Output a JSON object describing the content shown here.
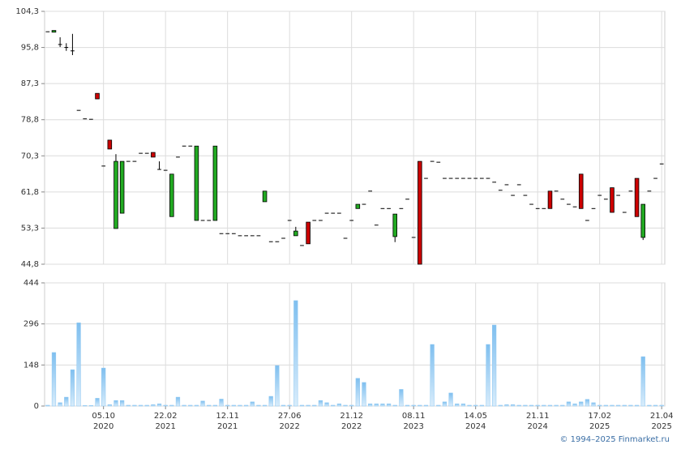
{
  "chart_data": {
    "type": "candlestick",
    "categories": [
      null,
      null,
      null,
      null,
      null,
      null,
      null,
      null,
      null,
      [
        "05.10",
        "2020"
      ],
      null,
      null,
      null,
      null,
      null,
      null,
      null,
      null,
      null,
      [
        "22.02",
        "2021"
      ],
      null,
      null,
      null,
      null,
      null,
      null,
      null,
      null,
      null,
      [
        "12.11",
        "2021"
      ],
      null,
      null,
      null,
      null,
      null,
      null,
      null,
      null,
      null,
      [
        "27.06",
        "2022"
      ],
      null,
      null,
      null,
      null,
      null,
      null,
      null,
      null,
      null,
      [
        "21.12",
        "2022"
      ],
      null,
      null,
      null,
      null,
      null,
      null,
      null,
      null,
      null,
      [
        "08.11",
        "2023"
      ],
      null,
      null,
      null,
      null,
      null,
      null,
      null,
      null,
      null,
      [
        "14.05",
        "2024"
      ],
      null,
      null,
      null,
      null,
      null,
      null,
      null,
      null,
      null,
      [
        "21.11",
        "2024"
      ],
      null,
      null,
      null,
      null,
      null,
      null,
      null,
      null,
      null,
      [
        "17.02",
        "2025"
      ],
      null,
      null,
      null,
      null,
      null,
      null,
      null,
      null,
      null,
      [
        "21.04",
        "2025"
      ]
    ],
    "open": [
      99.5,
      99.4,
      96.5,
      95.8,
      95.0,
      81.0,
      79.0,
      78.9,
      85.0,
      67.9,
      74.0,
      53.2,
      56.8,
      69.0,
      69.0,
      70.9,
      70.9,
      71.1,
      67.1,
      66.9,
      56.0,
      70.0,
      72.6,
      72.6,
      55.1,
      55.1,
      55.1,
      55.1,
      52.0,
      52.0,
      52.0,
      51.5,
      51.5,
      51.5,
      51.5,
      59.5,
      50.1,
      50.1,
      50.9,
      55.1,
      51.5,
      49.2,
      54.7,
      55.1,
      55.1,
      56.8,
      56.8,
      56.8,
      50.9,
      55.1,
      57.9,
      58.9,
      62.0,
      54.0,
      57.9,
      57.9,
      51.3,
      57.9,
      60.1,
      51.1,
      69.0,
      65.0,
      69.0,
      68.8,
      65.0,
      65.0,
      65.0,
      65.0,
      65.0,
      65.0,
      65.0,
      65.0,
      64.1,
      62.2,
      63.5,
      61.0,
      63.5,
      61.0,
      58.9,
      57.9,
      57.9,
      62.0,
      62.0,
      60.1,
      58.9,
      58.3,
      66.0,
      55.1,
      57.9,
      61.0,
      60.1,
      62.8,
      61.0,
      57.0,
      62.0,
      65.0,
      51.1,
      62.0,
      65.0,
      68.4
    ],
    "high": [
      99.5,
      99.8,
      98.2,
      96.8,
      99.0,
      81.0,
      79.0,
      78.9,
      85.0,
      67.9,
      74.0,
      70.7,
      69.0,
      69.0,
      69.0,
      70.9,
      70.9,
      71.1,
      69.0,
      66.9,
      66.0,
      70.0,
      72.6,
      72.6,
      72.6,
      55.1,
      55.1,
      72.6,
      52.0,
      52.0,
      52.0,
      51.5,
      51.5,
      51.5,
      51.5,
      62.0,
      50.1,
      50.1,
      50.9,
      55.1,
      53.6,
      49.2,
      54.7,
      55.1,
      55.1,
      56.8,
      56.8,
      56.8,
      50.9,
      55.1,
      58.9,
      58.9,
      62.0,
      54.0,
      57.9,
      57.9,
      56.6,
      57.9,
      60.1,
      51.1,
      69.0,
      65.0,
      69.0,
      68.8,
      65.0,
      65.0,
      65.0,
      65.0,
      65.0,
      65.0,
      65.0,
      65.0,
      64.1,
      62.2,
      63.5,
      61.0,
      63.5,
      61.0,
      58.9,
      57.9,
      57.9,
      62.0,
      62.0,
      60.1,
      58.9,
      58.3,
      66.0,
      55.1,
      57.9,
      61.0,
      60.1,
      62.8,
      61.0,
      57.0,
      62.0,
      65.0,
      58.9,
      62.0,
      65.0,
      68.4
    ],
    "low": [
      99.5,
      99.4,
      95.9,
      95.0,
      94.0,
      81.0,
      79.0,
      78.9,
      83.7,
      67.9,
      71.9,
      53.2,
      56.8,
      69.0,
      69.0,
      70.9,
      70.9,
      70.0,
      67.1,
      66.9,
      56.0,
      70.0,
      72.6,
      72.6,
      55.1,
      55.1,
      55.1,
      55.1,
      52.0,
      52.0,
      52.0,
      51.5,
      51.5,
      51.5,
      51.5,
      59.5,
      50.1,
      50.1,
      50.9,
      55.1,
      51.5,
      49.2,
      49.6,
      55.1,
      55.1,
      56.8,
      56.8,
      56.8,
      50.9,
      55.1,
      57.9,
      58.9,
      62.0,
      54.0,
      57.9,
      57.9,
      50.0,
      57.9,
      60.1,
      51.1,
      44.8,
      65.0,
      69.0,
      68.8,
      65.0,
      65.0,
      65.0,
      65.0,
      65.0,
      65.0,
      65.0,
      65.0,
      64.1,
      62.2,
      63.5,
      61.0,
      63.5,
      61.0,
      58.9,
      57.9,
      57.9,
      57.9,
      62.0,
      60.1,
      58.9,
      58.3,
      57.9,
      55.1,
      57.9,
      61.0,
      60.1,
      57.0,
      61.0,
      57.0,
      62.0,
      56.0,
      50.5,
      62.0,
      65.0,
      68.4
    ],
    "close": [
      99.5,
      99.8,
      96.5,
      95.8,
      95.0,
      81.0,
      79.0,
      78.9,
      83.7,
      67.9,
      71.9,
      69.0,
      69.0,
      69.0,
      69.0,
      70.9,
      70.9,
      70.0,
      67.1,
      66.9,
      66.0,
      70.0,
      72.6,
      72.6,
      72.6,
      55.1,
      55.1,
      72.6,
      52.0,
      52.0,
      52.0,
      51.5,
      51.5,
      51.5,
      51.5,
      62.0,
      50.1,
      50.1,
      50.9,
      55.1,
      52.6,
      49.2,
      49.6,
      55.1,
      55.1,
      56.8,
      56.8,
      56.8,
      50.9,
      55.1,
      58.9,
      58.9,
      62.0,
      54.0,
      57.9,
      57.9,
      56.6,
      57.9,
      60.1,
      51.1,
      44.8,
      65.0,
      69.0,
      68.8,
      65.0,
      65.0,
      65.0,
      65.0,
      65.0,
      65.0,
      65.0,
      65.0,
      64.1,
      62.2,
      63.5,
      61.0,
      63.5,
      61.0,
      58.9,
      57.9,
      57.9,
      57.9,
      62.0,
      60.1,
      58.9,
      58.3,
      57.9,
      55.1,
      57.9,
      61.0,
      60.1,
      57.0,
      61.0,
      57.0,
      62.0,
      56.0,
      58.9,
      62.0,
      65.0,
      68.4
    ],
    "volume": [
      3,
      193,
      12,
      32,
      131,
      300,
      2,
      2,
      28,
      137,
      5,
      20,
      20,
      3,
      3,
      3,
      3,
      5,
      8,
      3,
      3,
      32,
      3,
      3,
      3,
      18,
      3,
      3,
      25,
      3,
      3,
      3,
      3,
      15,
      3,
      3,
      35,
      146,
      3,
      3,
      380,
      3,
      3,
      3,
      20,
      12,
      3,
      8,
      3,
      3,
      100,
      85,
      8,
      8,
      8,
      8,
      3,
      60,
      3,
      3,
      3,
      3,
      222,
      3,
      15,
      47,
      8,
      8,
      3,
      3,
      3,
      222,
      292,
      3,
      5,
      5,
      3,
      3,
      3,
      3,
      3,
      3,
      3,
      3,
      15,
      8,
      15,
      24,
      12,
      3,
      3,
      3,
      3,
      3,
      3,
      3,
      178,
      3,
      3,
      3
    ],
    "up_color": "#22aa22",
    "down_color": "#cc0000",
    "volume_color": "#8ec8f2",
    "ylim": [
      44.8,
      104.3
    ],
    "yticks": [
      {
        "value": 44.8,
        "label": "44,8"
      },
      {
        "value": 53.3,
        "label": "53,3"
      },
      {
        "value": 61.8,
        "label": "61,8"
      },
      {
        "value": 70.3,
        "label": "70,3"
      },
      {
        "value": 78.8,
        "label": "78,8"
      },
      {
        "value": 87.3,
        "label": "87,3"
      },
      {
        "value": 95.8,
        "label": "95,8"
      },
      {
        "value": 104.3,
        "label": "104,3"
      }
    ],
    "volume_ylim": [
      0,
      444
    ],
    "volume_yticks": [
      0,
      148,
      296,
      444
    ],
    "grid": true,
    "credit": "© 1994–2025 Finmarket.ru"
  }
}
